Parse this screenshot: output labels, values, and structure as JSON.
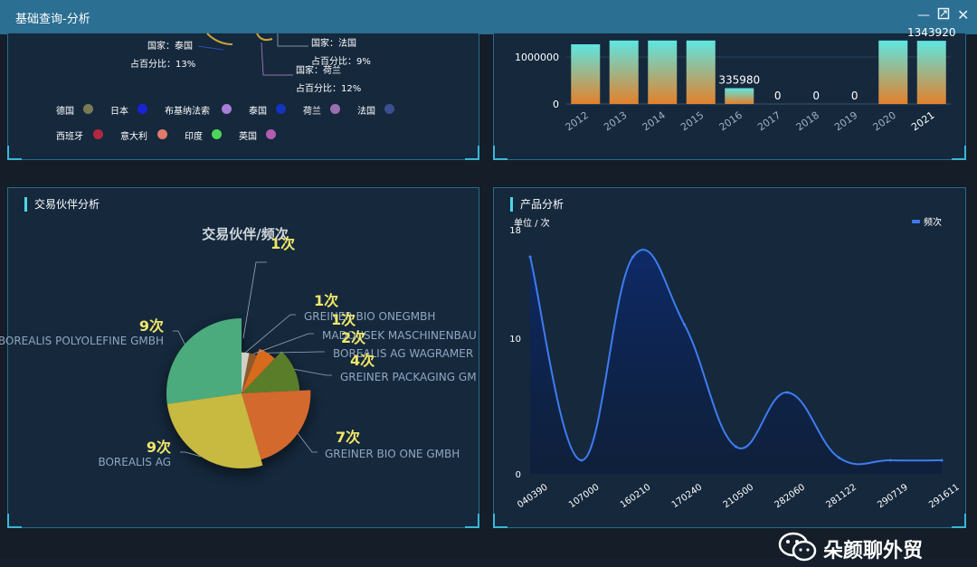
{
  "window": {
    "title": "基础查询-分析",
    "controls": [
      "minimize",
      "maximize",
      "close"
    ]
  },
  "panels": {
    "trade_partner": {
      "title": "交易伙伴分析"
    },
    "product": {
      "title": "产品分析"
    }
  },
  "top_left_pie_fragment": {
    "labels": [
      {
        "country": "国家：泰国",
        "share": "占百分比：13%"
      },
      {
        "country": "国家：法国",
        "share": "占百分比：9%"
      },
      {
        "country": "国家：荷兰",
        "share": "占百分比：12%"
      }
    ],
    "legend": [
      {
        "name": "德国",
        "color": "#7a7a55"
      },
      {
        "name": "日本",
        "color": "#1a22d8"
      },
      {
        "name": "布基纳法索",
        "color": "#a77fd8"
      },
      {
        "name": "泰国",
        "color": "#1433c0"
      },
      {
        "name": "荷兰",
        "color": "#9b6fb0"
      },
      {
        "name": "法国",
        "color": "#3a4f8f"
      },
      {
        "name": "西班牙",
        "color": "#b1283f"
      },
      {
        "name": "意大利",
        "color": "#e07a6a"
      },
      {
        "name": "印度",
        "color": "#4fd65a"
      },
      {
        "name": "英国",
        "color": "#b15cb0"
      }
    ]
  },
  "chart_data": [
    {
      "type": "bar",
      "categories": [
        "2012",
        "2013",
        "2014",
        "2015",
        "2016",
        "2017",
        "2018",
        "2019",
        "2020",
        "2021"
      ],
      "values": [
        1270000,
        1350000,
        1350000,
        1350000,
        335980,
        0,
        0,
        0,
        1350000,
        1343920
      ],
      "data_labels": [
        "",
        "",
        "",
        "",
        "335980",
        "0",
        "0",
        "0",
        "",
        "1343920"
      ],
      "yticks": [
        "0",
        "1000000"
      ],
      "ylim": [
        0,
        1400000
      ],
      "bar_color_top": "#5ee6e0",
      "bar_color_bottom": "#e3812b"
    },
    {
      "type": "pie",
      "title": "交易伙伴/频次",
      "slices": [
        {
          "name": "GREINER BIO ONEGMBH",
          "value": 1,
          "label": "1次",
          "color": "#cfd0c8"
        },
        {
          "name": "MADOUSEK MASCHINENBAU",
          "value": 1,
          "label": "1次",
          "color": "#8f5a2a"
        },
        {
          "name": "BOREALIS AG WAGRAMER",
          "value": 2,
          "label": "2次",
          "color": "#d86a1e"
        },
        {
          "name": "GREINER PACKAGING GM",
          "value": 4,
          "label": "4次",
          "color": "#5a7d2a"
        },
        {
          "name": "GREINER BIO ONE GMBH",
          "value": 7,
          "label": "7次",
          "color": "#d4692e"
        },
        {
          "name": "BOREALIS AG",
          "value": 9,
          "label": "9次",
          "color": "#c8b940"
        },
        {
          "name": "BOREALIS POLYOLEFINE GMBH",
          "value": 9,
          "label": "9次",
          "color": "#4cab7d"
        }
      ],
      "extra_label": "1次"
    },
    {
      "type": "line",
      "ylabel": "单位 / 次",
      "series_name": "频次",
      "color": "#3e7cf0",
      "x": [
        "040390",
        "107000",
        "160210",
        "170240",
        "210500",
        "282060",
        "281122",
        "290719",
        "291611"
      ],
      "y": [
        16,
        1,
        16,
        11,
        2,
        6,
        1.2,
        1,
        1
      ],
      "ylim": [
        0,
        18
      ],
      "yticks": [
        "0",
        "10",
        "18"
      ]
    }
  ],
  "watermark": {
    "text": "朵颜聊外贸"
  }
}
